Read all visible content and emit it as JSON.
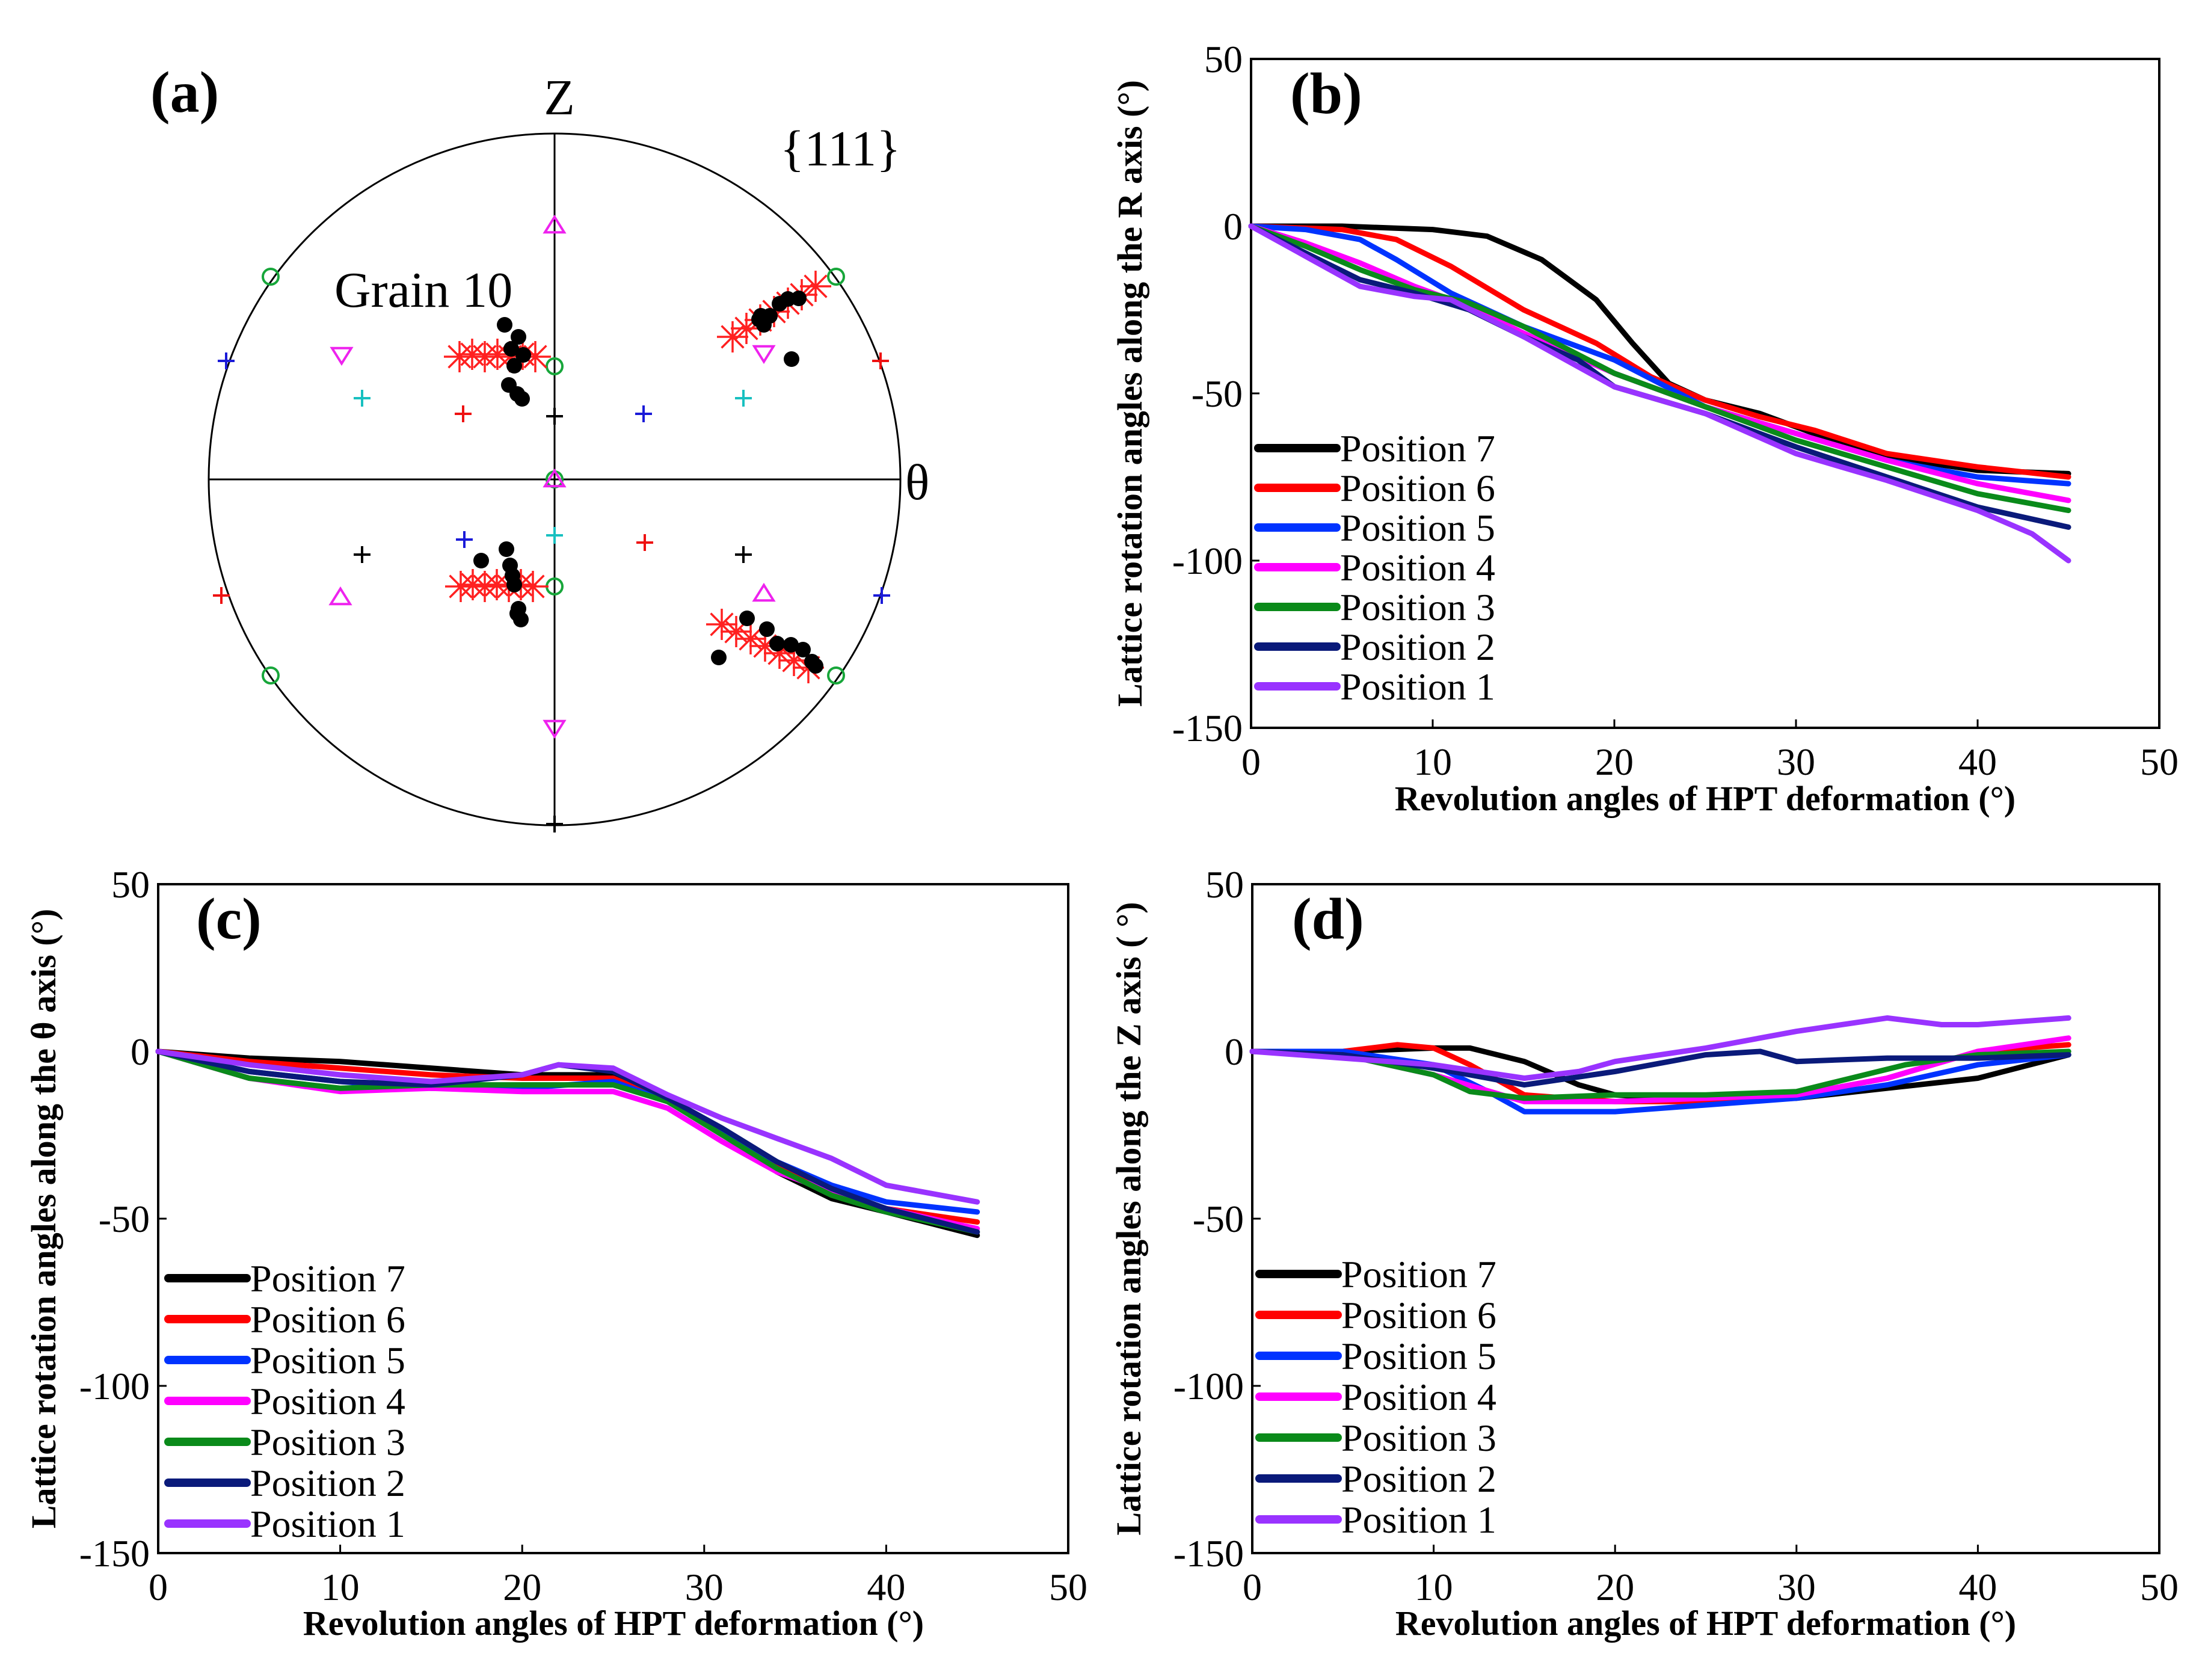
{
  "pole_figure": {
    "label": "(a)",
    "title": "{111}",
    "grain_label": "Grain 10",
    "axis_top": "Z",
    "axis_right": "θ",
    "colors": {
      "asterisk": "#ff2020",
      "dot": "#000000",
      "circle_marker": "#17a63a",
      "triangle_marker": "#ee22ee",
      "plus_red": "#ee1111",
      "plus_blue": "#1a1ad8",
      "plus_cyan": "#18c0c0",
      "plus_black": "#000000"
    }
  },
  "chart_data": [
    {
      "type": "line",
      "label": "(b)",
      "xlabel": "Revolution angles of HPT deformation (°)",
      "ylabel": "Lattice rotation angles along the R axis (°)",
      "xlim": [
        0,
        50
      ],
      "ylim": [
        -150,
        50
      ],
      "xticks": [
        "0",
        "10",
        "20",
        "30",
        "40",
        "50"
      ],
      "yticks": [
        "50",
        "0",
        "-50",
        "-100",
        "-150"
      ],
      "series": [
        {
          "name": "Position 7",
          "color": "#000000",
          "x": [
            0,
            5,
            10,
            13,
            16,
            19,
            21,
            23,
            25,
            28,
            31,
            35,
            40,
            45
          ],
          "y": [
            0,
            0,
            -1,
            -3,
            -10,
            -22,
            -35,
            -47,
            -52,
            -56,
            -62,
            -69,
            -73,
            -74
          ]
        },
        {
          "name": "Position 6",
          "color": "#ff0000",
          "x": [
            0,
            5,
            8,
            11,
            15,
            19,
            22,
            25,
            28,
            31,
            35,
            40,
            45
          ],
          "y": [
            0,
            -1,
            -4,
            -12,
            -25,
            -35,
            -45,
            -52,
            -57,
            -61,
            -68,
            -72,
            -75
          ]
        },
        {
          "name": "Position 5",
          "color": "#0033ff",
          "x": [
            0,
            3,
            6,
            8,
            11,
            15,
            20,
            25,
            30,
            35,
            40,
            45
          ],
          "y": [
            0,
            -1,
            -4,
            -10,
            -20,
            -30,
            -40,
            -54,
            -62,
            -70,
            -75,
            -77
          ]
        },
        {
          "name": "Position 4",
          "color": "#ff00ff",
          "x": [
            0,
            3,
            6,
            9,
            12,
            15,
            20,
            25,
            30,
            35,
            40,
            45
          ],
          "y": [
            0,
            -5,
            -11,
            -18,
            -24,
            -32,
            -44,
            -54,
            -62,
            -70,
            -77,
            -82
          ]
        },
        {
          "name": "Position 3",
          "color": "#0a8a1a",
          "x": [
            0,
            3,
            6,
            9,
            12,
            15,
            20,
            25,
            30,
            35,
            40,
            45
          ],
          "y": [
            0,
            -6,
            -13,
            -19,
            -23,
            -30,
            -44,
            -54,
            -64,
            -72,
            -80,
            -85
          ]
        },
        {
          "name": "Position 2",
          "color": "#0a1a7a",
          "x": [
            0,
            3,
            6,
            9,
            12,
            15,
            18,
            20,
            25,
            30,
            35,
            40,
            45
          ],
          "y": [
            0,
            -8,
            -16,
            -20,
            -25,
            -33,
            -40,
            -48,
            -56,
            -66,
            -75,
            -84,
            -90
          ]
        },
        {
          "name": "Position 1",
          "color": "#9933ff",
          "x": [
            0,
            3,
            6,
            9,
            11,
            15,
            18,
            20,
            25,
            30,
            35,
            40,
            43,
            45
          ],
          "y": [
            0,
            -9,
            -18,
            -21,
            -22,
            -33,
            -42,
            -48,
            -56,
            -68,
            -76,
            -85,
            -92,
            -100
          ]
        }
      ]
    },
    {
      "type": "line",
      "label": "(c)",
      "xlabel": "Revolution angles of HPT deformation (°)",
      "ylabel": "Lattice rotation angles along the θ axis (°)",
      "xlim": [
        0,
        50
      ],
      "ylim": [
        -150,
        50
      ],
      "xticks": [
        "0",
        "10",
        "20",
        "30",
        "40",
        "50"
      ],
      "yticks": [
        "50",
        "0",
        "-50",
        "-100",
        "-150"
      ],
      "series": [
        {
          "name": "Position 7",
          "color": "#000000",
          "x": [
            0,
            5,
            10,
            15,
            20,
            25,
            28,
            31,
            34,
            37,
            40,
            45
          ],
          "y": [
            0,
            -2,
            -3,
            -5,
            -7,
            -7,
            -14,
            -24,
            -36,
            -44,
            -48,
            -55
          ]
        },
        {
          "name": "Position 6",
          "color": "#ff0000",
          "x": [
            0,
            5,
            10,
            15,
            20,
            25,
            28,
            31,
            34,
            37,
            40,
            45
          ],
          "y": [
            0,
            -3,
            -5,
            -7,
            -8,
            -8,
            -15,
            -24,
            -34,
            -42,
            -47,
            -51
          ]
        },
        {
          "name": "Position 5",
          "color": "#0033ff",
          "x": [
            0,
            5,
            10,
            15,
            20,
            25,
            28,
            31,
            34,
            37,
            40,
            45
          ],
          "y": [
            0,
            -6,
            -9,
            -11,
            -11,
            -9,
            -15,
            -24,
            -33,
            -40,
            -45,
            -48
          ]
        },
        {
          "name": "Position 4",
          "color": "#ff00ff",
          "x": [
            0,
            5,
            10,
            15,
            20,
            25,
            28,
            31,
            34,
            37,
            40,
            45
          ],
          "y": [
            0,
            -8,
            -12,
            -11,
            -12,
            -12,
            -17,
            -27,
            -36,
            -42,
            -47,
            -53
          ]
        },
        {
          "name": "Position 3",
          "color": "#0a8a1a",
          "x": [
            0,
            5,
            10,
            15,
            20,
            25,
            28,
            31,
            34,
            37,
            40,
            45
          ],
          "y": [
            0,
            -8,
            -11,
            -10,
            -10,
            -10,
            -15,
            -25,
            -35,
            -43,
            -48,
            -54
          ]
        },
        {
          "name": "Position 2",
          "color": "#0a1a7a",
          "x": [
            0,
            5,
            10,
            15,
            20,
            22,
            25,
            28,
            31,
            34,
            37,
            40,
            45
          ],
          "y": [
            0,
            -6,
            -9,
            -10,
            -7,
            -4,
            -6,
            -14,
            -23,
            -33,
            -41,
            -47,
            -54
          ]
        },
        {
          "name": "Position 1",
          "color": "#9933ff",
          "x": [
            0,
            5,
            10,
            15,
            20,
            22,
            25,
            28,
            31,
            34,
            37,
            40,
            45
          ],
          "y": [
            0,
            -4,
            -7,
            -9,
            -7,
            -4,
            -5,
            -13,
            -20,
            -26,
            -32,
            -40,
            -45
          ]
        }
      ]
    },
    {
      "type": "line",
      "label": "(d)",
      "xlabel": "Revolution angles of HPT deformation (°)",
      "ylabel": "Lattice rotation angles along the Z axis ( °)",
      "xlim": [
        0,
        50
      ],
      "ylim": [
        -150,
        50
      ],
      "xticks": [
        "0",
        "10",
        "20",
        "30",
        "40",
        "50"
      ],
      "yticks": [
        "50",
        "0",
        "-50",
        "-100",
        "-150"
      ],
      "series": [
        {
          "name": "Position 7",
          "color": "#000000",
          "x": [
            0,
            5,
            10,
            12,
            15,
            18,
            20,
            25,
            30,
            35,
            40,
            45
          ],
          "y": [
            0,
            0,
            1,
            1,
            -3,
            -10,
            -13,
            -15,
            -14,
            -11,
            -8,
            -1
          ]
        },
        {
          "name": "Position 6",
          "color": "#ff0000",
          "x": [
            0,
            5,
            8,
            10,
            12,
            15,
            20,
            25,
            30,
            35,
            40,
            45
          ],
          "y": [
            0,
            0,
            2,
            1,
            -4,
            -13,
            -15,
            -15,
            -13,
            -8,
            0,
            2
          ]
        },
        {
          "name": "Position 5",
          "color": "#0033ff",
          "x": [
            0,
            5,
            10,
            13,
            15,
            20,
            25,
            30,
            35,
            40,
            45
          ],
          "y": [
            0,
            0,
            -4,
            -12,
            -18,
            -18,
            -16,
            -14,
            -10,
            -4,
            -1
          ]
        },
        {
          "name": "Position 4",
          "color": "#ff00ff",
          "x": [
            0,
            5,
            10,
            15,
            20,
            25,
            30,
            35,
            40,
            45
          ],
          "y": [
            0,
            -1,
            -7,
            -15,
            -15,
            -14,
            -13,
            -8,
            0,
            4
          ]
        },
        {
          "name": "Position 3",
          "color": "#0a8a1a",
          "x": [
            0,
            5,
            10,
            12,
            15,
            20,
            25,
            30,
            33,
            36,
            40,
            45
          ],
          "y": [
            0,
            -1,
            -7,
            -12,
            -14,
            -13,
            -13,
            -12,
            -8,
            -4,
            -1,
            0
          ]
        },
        {
          "name": "Position 2",
          "color": "#0a1a7a",
          "x": [
            0,
            5,
            10,
            15,
            20,
            25,
            28,
            30,
            35,
            40,
            45
          ],
          "y": [
            0,
            -1,
            -5,
            -10,
            -6,
            -1,
            0,
            -3,
            -2,
            -2,
            -1
          ]
        },
        {
          "name": "Position 1",
          "color": "#9933ff",
          "x": [
            0,
            5,
            10,
            15,
            18,
            20,
            25,
            30,
            35,
            38,
            40,
            45
          ],
          "y": [
            0,
            -2,
            -4,
            -8,
            -6,
            -3,
            1,
            6,
            10,
            8,
            8,
            10
          ]
        }
      ]
    }
  ]
}
